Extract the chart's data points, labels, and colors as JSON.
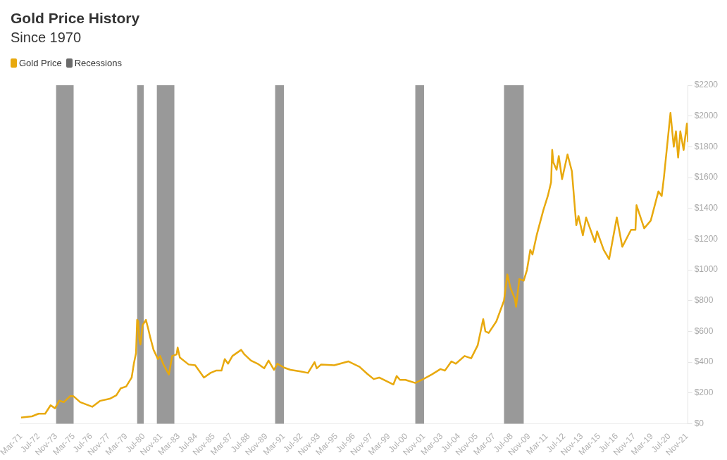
{
  "chart_data": {
    "type": "line",
    "title": "Gold Price History",
    "subtitle": "Since 1970",
    "legend": "top left",
    "xlim": [
      "1971-02",
      "2021-12"
    ],
    "xticks": [
      {
        "value": "1971-03",
        "label": "Mar-71"
      },
      {
        "value": "1972-07",
        "label": "Jul-72"
      },
      {
        "value": "1973-11",
        "label": "Nov-73"
      },
      {
        "value": "1975-03",
        "label": "Mar-75"
      },
      {
        "value": "1976-07",
        "label": "Jul-76"
      },
      {
        "value": "1977-11",
        "label": "Nov-77"
      },
      {
        "value": "1979-03",
        "label": "Mar-79"
      },
      {
        "value": "1980-07",
        "label": "Jul-80"
      },
      {
        "value": "1981-11",
        "label": "Nov-81"
      },
      {
        "value": "1983-03",
        "label": "Mar-83"
      },
      {
        "value": "1984-07",
        "label": "Jul-84"
      },
      {
        "value": "1985-11",
        "label": "Nov-85"
      },
      {
        "value": "1987-03",
        "label": "Mar-87"
      },
      {
        "value": "1988-07",
        "label": "Jul-88"
      },
      {
        "value": "1989-11",
        "label": "Nov-89"
      },
      {
        "value": "1991-03",
        "label": "Mar-91"
      },
      {
        "value": "1992-07",
        "label": "Jul-92"
      },
      {
        "value": "1993-11",
        "label": "Nov-93"
      },
      {
        "value": "1995-03",
        "label": "Mar-95"
      },
      {
        "value": "1996-07",
        "label": "Jul-96"
      },
      {
        "value": "1997-11",
        "label": "Nov-97"
      },
      {
        "value": "1999-03",
        "label": "Mar-99"
      },
      {
        "value": "2000-07",
        "label": "Jul-00"
      },
      {
        "value": "2001-11",
        "label": "Nov-01"
      },
      {
        "value": "2003-03",
        "label": "Mar-03"
      },
      {
        "value": "2004-07",
        "label": "Jul-04"
      },
      {
        "value": "2005-11",
        "label": "Nov-05"
      },
      {
        "value": "2007-03",
        "label": "Mar-07"
      },
      {
        "value": "2008-07",
        "label": "Jul-08"
      },
      {
        "value": "2009-11",
        "label": "Nov-09"
      },
      {
        "value": "2011-03",
        "label": "Mar-11"
      },
      {
        "value": "2012-07",
        "label": "Jul-12"
      },
      {
        "value": "2013-11",
        "label": "Nov-13"
      },
      {
        "value": "2015-03",
        "label": "Mar-15"
      },
      {
        "value": "2016-07",
        "label": "Jul-16"
      },
      {
        "value": "2017-11",
        "label": "Nov-17"
      },
      {
        "value": "2019-03",
        "label": "Mar-19"
      },
      {
        "value": "2020-07",
        "label": "Jul-20"
      },
      {
        "value": "2021-11",
        "label": "Nov-21"
      }
    ],
    "ylim": [
      0,
      2200
    ],
    "yticks": [
      {
        "value": 0,
        "label": "$0"
      },
      {
        "value": 200,
        "label": "$200"
      },
      {
        "value": 400,
        "label": "$400"
      },
      {
        "value": 600,
        "label": "$600"
      },
      {
        "value": 800,
        "label": "$800"
      },
      {
        "value": 1000,
        "label": "$1000"
      },
      {
        "value": 1200,
        "label": "$1200"
      },
      {
        "value": 1400,
        "label": "$1400"
      },
      {
        "value": 1600,
        "label": "$1600"
      },
      {
        "value": 1800,
        "label": "$1800"
      },
      {
        "value": 2000,
        "label": "$2000"
      },
      {
        "value": 2200,
        "label": "$2200"
      }
    ],
    "bands": [
      {
        "axis": "x",
        "from": "1973-11",
        "to": "1975-03",
        "label": "Recessions",
        "color": "#999999"
      },
      {
        "axis": "x",
        "from": "1980-01",
        "to": "1980-07",
        "color": "#999999"
      },
      {
        "axis": "x",
        "from": "1981-07",
        "to": "1982-11",
        "color": "#999999"
      },
      {
        "axis": "x",
        "from": "1990-07",
        "to": "1991-03",
        "color": "#999999"
      },
      {
        "axis": "x",
        "from": "2001-03",
        "to": "2001-11",
        "color": "#999999"
      },
      {
        "axis": "x",
        "from": "2007-12",
        "to": "2009-06",
        "color": "#999999"
      }
    ],
    "series": [
      {
        "name": "Gold Price",
        "color": "#e8a90e",
        "x": [
          "1971-03",
          "1972-01",
          "1972-07",
          "1973-01",
          "1973-06",
          "1973-10",
          "1974-02",
          "1974-06",
          "1974-12",
          "1975-03",
          "1975-09",
          "1976-08",
          "1977-03",
          "1977-12",
          "1978-06",
          "1978-10",
          "1979-03",
          "1979-08",
          "1979-10",
          "1979-12",
          "1980-01",
          "1980-02",
          "1980-03",
          "1980-04",
          "1980-06",
          "1980-09",
          "1980-11",
          "1981-01",
          "1981-04",
          "1981-08",
          "1981-10",
          "1982-01",
          "1982-06",
          "1982-09",
          "1983-01",
          "1983-02",
          "1983-04",
          "1983-12",
          "1984-06",
          "1985-02",
          "1985-08",
          "1986-01",
          "1986-06",
          "1986-09",
          "1986-12",
          "1987-04",
          "1987-12",
          "1988-03",
          "1988-09",
          "1989-03",
          "1989-09",
          "1990-01",
          "1990-06",
          "1990-09",
          "1991-03",
          "1991-09",
          "1992-06",
          "1993-01",
          "1993-07",
          "1993-09",
          "1994-01",
          "1995-01",
          "1996-02",
          "1996-12",
          "1997-07",
          "1998-01",
          "1998-06",
          "1999-07",
          "1999-10",
          "2000-01",
          "2000-06",
          "2001-03",
          "2001-09",
          "2002-06",
          "2003-02",
          "2003-06",
          "2003-12",
          "2004-04",
          "2004-12",
          "2005-06",
          "2005-12",
          "2006-05",
          "2006-07",
          "2006-10",
          "2007-05",
          "2007-12",
          "2008-03",
          "2008-06",
          "2008-10",
          "2008-11",
          "2009-02",
          "2009-06",
          "2009-09",
          "2009-12",
          "2010-02",
          "2010-06",
          "2010-12",
          "2011-04",
          "2011-07",
          "2011-08",
          "2011-09",
          "2011-12",
          "2012-02",
          "2012-05",
          "2012-10",
          "2013-02",
          "2013-06",
          "2013-08",
          "2013-12",
          "2014-03",
          "2014-06",
          "2014-11",
          "2015-01",
          "2015-07",
          "2015-12",
          "2016-07",
          "2016-12",
          "2017-08",
          "2017-12",
          "2018-01",
          "2018-08",
          "2019-02",
          "2019-09",
          "2019-12",
          "2020-02",
          "2020-08",
          "2020-11",
          "2021-01",
          "2021-03",
          "2021-05",
          "2021-08",
          "2021-11",
          "2021-12"
        ],
        "values": [
          40,
          48,
          65,
          65,
          120,
          100,
          150,
          140,
          180,
          178,
          140,
          110,
          148,
          162,
          185,
          230,
          242,
          300,
          390,
          460,
          675,
          665,
          550,
          515,
          640,
          675,
          620,
          560,
          480,
          420,
          440,
          385,
          320,
          440,
          450,
          495,
          430,
          385,
          380,
          300,
          330,
          345,
          345,
          420,
          390,
          440,
          480,
          450,
          410,
          390,
          360,
          410,
          350,
          390,
          365,
          350,
          340,
          330,
          400,
          360,
          385,
          380,
          405,
          370,
          325,
          290,
          300,
          255,
          310,
          285,
          285,
          265,
          285,
          320,
          355,
          345,
          405,
          390,
          440,
          425,
          510,
          680,
          600,
          590,
          665,
          800,
          970,
          880,
          810,
          760,
          940,
          930,
          1000,
          1130,
          1100,
          1230,
          1390,
          1480,
          1570,
          1780,
          1700,
          1650,
          1740,
          1590,
          1750,
          1640,
          1290,
          1350,
          1225,
          1340,
          1280,
          1180,
          1250,
          1130,
          1070,
          1340,
          1150,
          1260,
          1260,
          1420,
          1270,
          1320,
          1510,
          1480,
          1600,
          2020,
          1800,
          1900,
          1730,
          1900,
          1780,
          1950,
          1830
        ]
      }
    ]
  }
}
